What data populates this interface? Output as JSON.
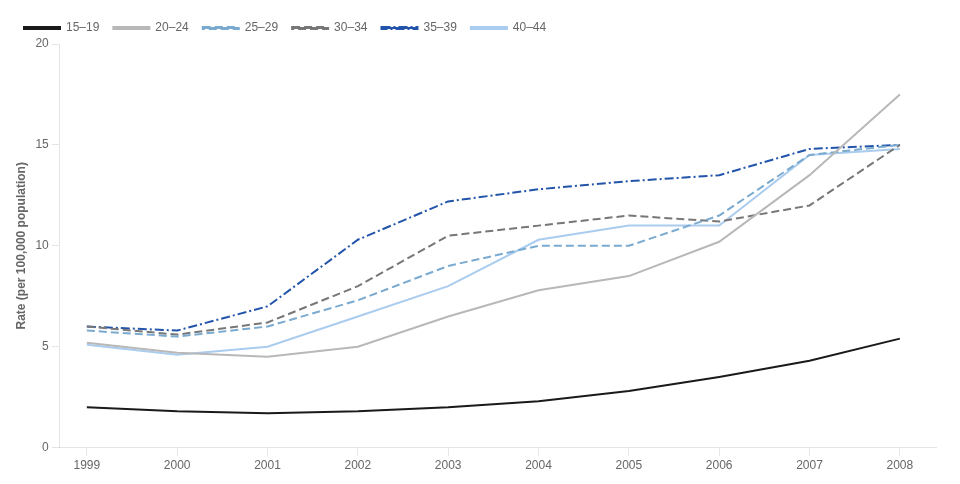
{
  "chart_data": {
    "type": "line",
    "ylabel": "Rate (per 100,000 population)",
    "x": [
      1999,
      2000,
      2001,
      2002,
      2003,
      2004,
      2005,
      2006,
      2007,
      2008
    ],
    "series": [
      {
        "name": "15–19",
        "color": "#1a1a1a",
        "line_style": "solid",
        "values": [
          2.0,
          1.8,
          1.7,
          1.8,
          2.0,
          2.3,
          2.8,
          3.5,
          4.3,
          5.4
        ]
      },
      {
        "name": "20–24",
        "color": "#b8b8b8",
        "line_style": "solid",
        "values": [
          5.2,
          4.7,
          4.5,
          5.0,
          6.5,
          7.8,
          8.5,
          10.2,
          13.5,
          17.5
        ]
      },
      {
        "name": "25–29",
        "color": "#7aaacf",
        "line_style": "dashed",
        "values": [
          5.8,
          5.5,
          6.0,
          7.3,
          9.0,
          10.0,
          10.0,
          11.5,
          14.5,
          15.0
        ]
      },
      {
        "name": "30–34",
        "color": "#777777",
        "line_style": "dashed",
        "values": [
          6.0,
          5.6,
          6.2,
          8.0,
          10.5,
          11.0,
          11.5,
          11.2,
          12.0,
          15.0
        ]
      },
      {
        "name": "35–39",
        "color": "#2255aa",
        "line_style": "dashdot",
        "values": [
          6.0,
          5.8,
          7.0,
          10.3,
          12.2,
          12.8,
          13.2,
          13.5,
          14.8,
          15.0
        ]
      },
      {
        "name": "40–44",
        "color": "#aaccee",
        "line_style": "solid",
        "values": [
          5.1,
          4.6,
          5.0,
          6.5,
          8.0,
          10.3,
          11.0,
          11.0,
          14.5,
          14.8
        ]
      }
    ],
    "xlim": [
      1998.7,
      2008.4
    ],
    "xticks": [
      1999,
      2000,
      2001,
      2002,
      2003,
      2004,
      2005,
      2006,
      2007,
      2008
    ],
    "ylim": [
      0,
      20
    ],
    "yticks": [
      0,
      5,
      10,
      15,
      20
    ],
    "grid": false,
    "legend": "upper left"
  }
}
